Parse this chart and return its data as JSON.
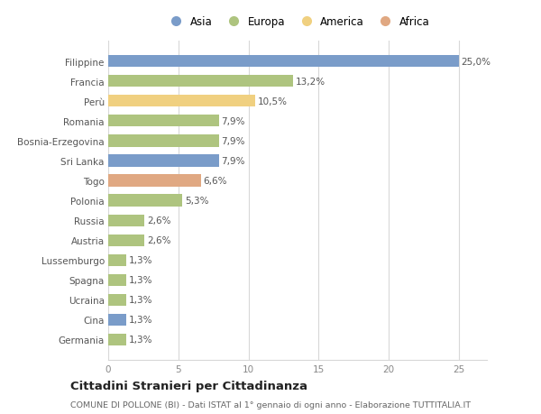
{
  "categories": [
    "Germania",
    "Cina",
    "Ucraina",
    "Spagna",
    "Lussemburgo",
    "Austria",
    "Russia",
    "Polonia",
    "Togo",
    "Sri Lanka",
    "Bosnia-Erzegovina",
    "Romania",
    "Perù",
    "Francia",
    "Filippine"
  ],
  "values": [
    1.3,
    1.3,
    1.3,
    1.3,
    1.3,
    2.6,
    2.6,
    5.3,
    6.6,
    7.9,
    7.9,
    7.9,
    10.5,
    13.2,
    25.0
  ],
  "labels": [
    "1,3%",
    "1,3%",
    "1,3%",
    "1,3%",
    "1,3%",
    "2,6%",
    "2,6%",
    "5,3%",
    "6,6%",
    "7,9%",
    "7,9%",
    "7,9%",
    "10,5%",
    "13,2%",
    "25,0%"
  ],
  "continents": [
    "Europa",
    "Asia",
    "Europa",
    "Europa",
    "Europa",
    "Europa",
    "Europa",
    "Europa",
    "Africa",
    "Asia",
    "Europa",
    "Europa",
    "America",
    "Europa",
    "Asia"
  ],
  "continent_colors": {
    "Asia": "#7a9cc9",
    "Europa": "#aec47f",
    "America": "#f0d080",
    "Africa": "#e0a882"
  },
  "legend_order": [
    "Asia",
    "Europa",
    "America",
    "Africa"
  ],
  "xlim": [
    0,
    27
  ],
  "xticks": [
    0,
    5,
    10,
    15,
    20,
    25
  ],
  "title": "Cittadini Stranieri per Cittadinanza",
  "subtitle": "COMUNE DI POLLONE (BI) - Dati ISTAT al 1° gennaio di ogni anno - Elaborazione TUTTITALIA.IT",
  "bg_color": "#ffffff",
  "grid_color": "#d8d8d8",
  "bar_height": 0.6,
  "label_fontsize": 7.5,
  "tick_fontsize": 7.5,
  "title_fontsize": 9.5,
  "subtitle_fontsize": 6.8
}
